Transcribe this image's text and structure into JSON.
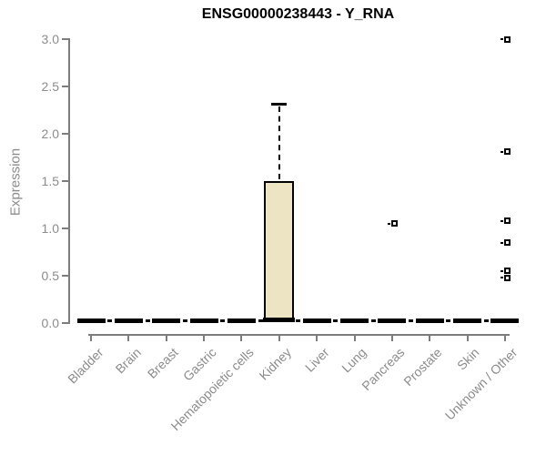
{
  "title": "ENSG00000238443 - Y_RNA",
  "chart_data": {
    "type": "boxplot",
    "title": "ENSG00000238443 - Y_RNA",
    "xlabel": "",
    "ylabel": "Expression",
    "ylim": [
      0.0,
      3.0
    ],
    "yticks": [
      "0.0",
      "0.5",
      "1.0",
      "1.5",
      "2.0",
      "2.5",
      "3.0"
    ],
    "grid": false,
    "legend": "none",
    "categories": [
      "Bladder",
      "Brain",
      "Breast",
      "Gastric",
      "Hematopoietic cells",
      "Kidney",
      "Liver",
      "Lung",
      "Pancreas",
      "Prostate",
      "Skin",
      "Unknown / Other"
    ],
    "series": [
      {
        "name": "Bladder",
        "q1": 0.0,
        "median": 0.02,
        "q3": 0.0,
        "whisker_low": 0.0,
        "whisker_high": 0.0,
        "outliers": []
      },
      {
        "name": "Brain",
        "q1": 0.0,
        "median": 0.02,
        "q3": 0.0,
        "whisker_low": 0.0,
        "whisker_high": 0.0,
        "outliers": []
      },
      {
        "name": "Breast",
        "q1": 0.0,
        "median": 0.02,
        "q3": 0.0,
        "whisker_low": 0.0,
        "whisker_high": 0.0,
        "outliers": []
      },
      {
        "name": "Gastric",
        "q1": 0.0,
        "median": 0.02,
        "q3": 0.0,
        "whisker_low": 0.0,
        "whisker_high": 0.0,
        "outliers": []
      },
      {
        "name": "Hematopoietic cells",
        "q1": 0.0,
        "median": 0.02,
        "q3": 0.0,
        "whisker_low": 0.0,
        "whisker_high": 0.0,
        "outliers": []
      },
      {
        "name": "Kidney",
        "q1": 0.02,
        "median": 0.03,
        "q3": 1.5,
        "whisker_low": 0.0,
        "whisker_high": 2.31,
        "outliers": []
      },
      {
        "name": "Liver",
        "q1": 0.0,
        "median": 0.02,
        "q3": 0.0,
        "whisker_low": 0.0,
        "whisker_high": 0.0,
        "outliers": []
      },
      {
        "name": "Lung",
        "q1": 0.0,
        "median": 0.02,
        "q3": 0.0,
        "whisker_low": 0.0,
        "whisker_high": 0.0,
        "outliers": []
      },
      {
        "name": "Pancreas",
        "q1": 0.0,
        "median": 0.02,
        "q3": 0.0,
        "whisker_low": 0.0,
        "whisker_high": 0.0,
        "outliers": [
          1.05
        ]
      },
      {
        "name": "Prostate",
        "q1": 0.0,
        "median": 0.02,
        "q3": 0.0,
        "whisker_low": 0.0,
        "whisker_high": 0.0,
        "outliers": []
      },
      {
        "name": "Skin",
        "q1": 0.0,
        "median": 0.02,
        "q3": 0.0,
        "whisker_low": 0.0,
        "whisker_high": 0.0,
        "outliers": []
      },
      {
        "name": "Unknown / Other",
        "q1": 0.0,
        "median": 0.02,
        "q3": 0.0,
        "whisker_low": 0.0,
        "whisker_high": 0.0,
        "outliers": [
          3.0,
          1.81,
          1.08,
          0.85,
          0.55,
          0.48
        ]
      }
    ],
    "zero_reference_line": {
      "value": 0.02,
      "style": "dashed",
      "color": "#000000"
    },
    "colors": {
      "box_fill": "#ede4c4",
      "box_border": "#000000",
      "median": "#000000",
      "outlier": "#000000",
      "axis_line": "#7d7d7d",
      "tick_text": "#8c8c8c",
      "title_text": "#000000",
      "background": "#ffffff"
    }
  }
}
